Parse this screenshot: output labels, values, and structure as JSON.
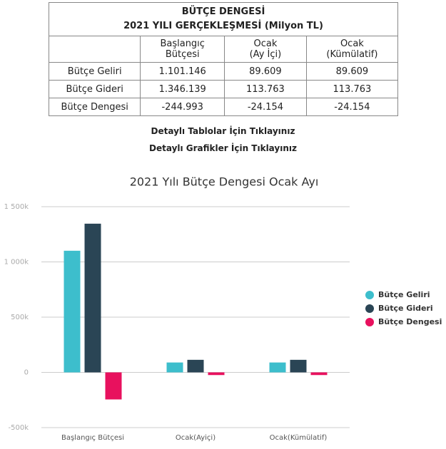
{
  "table": {
    "title": "BÜTÇE DENGESİ",
    "subtitle": "2021 YILI GERÇEKLEŞMESİ (Milyon TL)",
    "header": [
      "",
      "Başlangıç\nBütçesi",
      "Ocak\n(Ay İçi)",
      "Ocak\n(Kümülatif)"
    ],
    "rows": [
      [
        "Bütçe Geliri",
        "1.101.146",
        "89.609",
        "89.609"
      ],
      [
        "Bütçe Gideri",
        "1.346.139",
        "113.763",
        "113.763"
      ],
      [
        "Bütçe Dengesi",
        "-244.993",
        "-24.154",
        "-24.154"
      ]
    ]
  },
  "links": [
    "Detaylı Tablolar İçin Tıklayınız",
    "Detaylı Grafikler İçin Tıklayınız"
  ],
  "chart_data": {
    "type": "bar",
    "title": "2021 Yılı Bütçe Dengesi Ocak Ayı",
    "categories": [
      "Başlangıç Bütçesi",
      "Ocak(Ayiçi)",
      "Ocak(Kümülatif)"
    ],
    "series": [
      {
        "name": "Bütçe Geliri",
        "color": "#3dbecc",
        "values": [
          1101146,
          89609,
          89609
        ]
      },
      {
        "name": "Bütçe Gideri",
        "color": "#2a4555",
        "values": [
          1346139,
          113763,
          113763
        ]
      },
      {
        "name": "Bütçe Dengesi",
        "color": "#e8115e",
        "values": [
          -244993,
          -24154,
          -24154
        ]
      }
    ],
    "ylim": [
      -500000,
      1500000
    ],
    "yticks": [
      {
        "value": -500000,
        "label": "-500k"
      },
      0,
      {
        "value": 500000,
        "label": "500k"
      },
      {
        "value": 1000000,
        "label": "1 000k"
      },
      {
        "value": 1500000,
        "label": "1 500k"
      }
    ],
    "grid": true,
    "legend": "right"
  }
}
